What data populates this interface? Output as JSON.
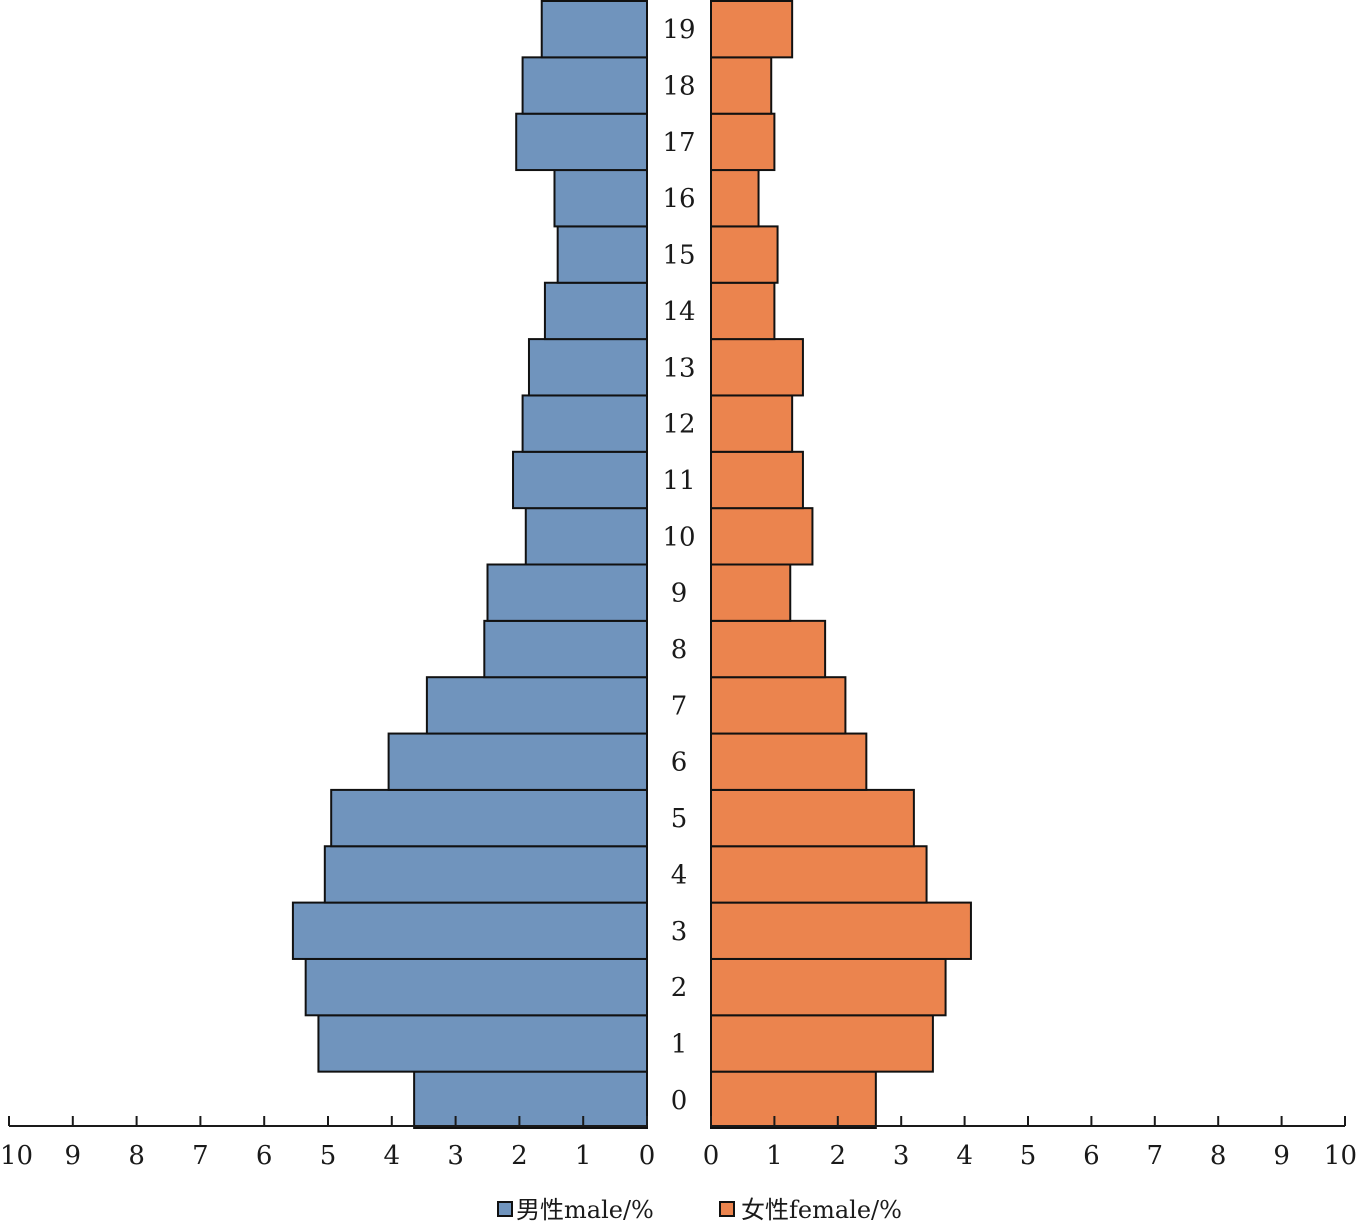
{
  "chart_data": {
    "type": "bar",
    "orientation": "horizontal-population-pyramid",
    "categories": [
      "0",
      "1",
      "2",
      "3",
      "4",
      "5",
      "6",
      "7",
      "8",
      "9",
      "10",
      "11",
      "12",
      "13",
      "14",
      "15",
      "16",
      "17",
      "18",
      "19"
    ],
    "series": [
      {
        "name": "男性male/%",
        "color": "#7094bd",
        "side": "left",
        "values": [
          3.65,
          5.15,
          5.35,
          5.55,
          5.05,
          4.95,
          4.05,
          3.45,
          2.55,
          2.5,
          1.9,
          2.1,
          1.95,
          1.85,
          1.6,
          1.4,
          1.45,
          2.05,
          1.95,
          1.65
        ]
      },
      {
        "name": "女性female/%",
        "color": "#eb844e",
        "side": "right",
        "values": [
          2.6,
          3.5,
          3.7,
          4.1,
          3.4,
          3.2,
          2.45,
          2.12,
          1.8,
          1.25,
          1.6,
          1.45,
          1.28,
          1.45,
          1.0,
          1.05,
          0.75,
          1.0,
          0.95,
          1.28
        ]
      }
    ],
    "x_ticks": [
      "0",
      "1",
      "2",
      "3",
      "4",
      "5",
      "6",
      "7",
      "8",
      "9",
      "10"
    ],
    "xlim": [
      0,
      10
    ],
    "legend_position": "bottom-center",
    "grid": false
  }
}
